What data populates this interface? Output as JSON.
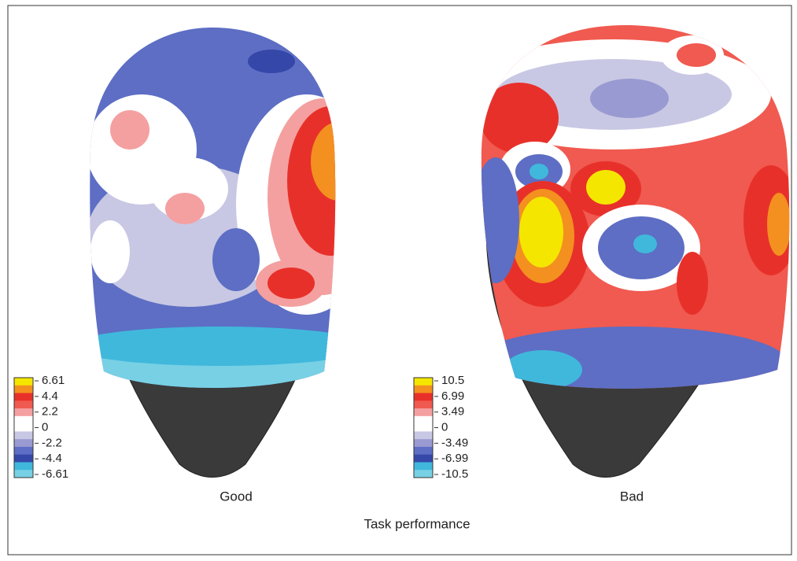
{
  "panels": [
    {
      "label": "Good",
      "colorbar_ticks": [
        6.61,
        4.4,
        2.2,
        0,
        -2.2,
        -4.4,
        -6.61
      ]
    },
    {
      "label": "Bad",
      "colorbar_ticks": [
        10.5,
        6.99,
        3.49,
        0,
        -3.49,
        -6.99,
        -10.5
      ]
    }
  ],
  "xlabel": "Task performance"
}
